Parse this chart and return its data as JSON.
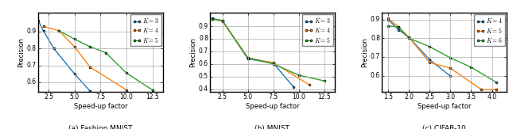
{
  "fashion_mnist": {
    "title": "(a) Fashion MNIST",
    "xlabel": "Speed-up factor",
    "ylabel": "Precision",
    "xlim": [
      1.5,
      13.5
    ],
    "ylim": [
      0.545,
      1.01
    ],
    "xticks": [
      2.5,
      5.0,
      7.5,
      10.0,
      12.5
    ],
    "yticks": [
      0.6,
      0.7,
      0.8,
      0.9
    ],
    "series": [
      {
        "label": "$K = 3$",
        "color": "#1f77b4",
        "x": [
          1.5,
          2.0,
          3.0,
          5.0,
          6.5
        ],
        "y": [
          0.965,
          0.905,
          0.8,
          0.65,
          0.548
        ]
      },
      {
        "label": "$K = 4$",
        "color": "#ff7f0e",
        "x": [
          2.0,
          3.5,
          5.0,
          6.5,
          10.0
        ],
        "y": [
          0.93,
          0.905,
          0.81,
          0.69,
          0.555
        ]
      },
      {
        "label": "$K = 5$",
        "color": "#2ca02c",
        "x": [
          3.5,
          5.0,
          6.5,
          8.0,
          10.0,
          12.5
        ],
        "y": [
          0.905,
          0.855,
          0.81,
          0.775,
          0.655,
          0.555
        ]
      }
    ]
  },
  "mnist": {
    "title": "(b) MNIST",
    "xlabel": "Speed-up factor",
    "ylabel": "Precision",
    "xlim": [
      1.3,
      13.5
    ],
    "ylim": [
      0.38,
      1.005
    ],
    "xticks": [
      2.5,
      5.0,
      7.5,
      10.0,
      12.5
    ],
    "yticks": [
      0.4,
      0.5,
      0.6,
      0.7,
      0.8,
      0.9
    ],
    "series": [
      {
        "label": "$K = 3$",
        "color": "#1f77b4",
        "x": [
          1.5,
          2.5,
          5.0,
          7.5,
          9.5
        ],
        "y": [
          0.96,
          0.945,
          0.64,
          0.605,
          0.415
        ]
      },
      {
        "label": "$K = 4$",
        "color": "#ff7f0e",
        "x": [
          1.5,
          2.5,
          5.0,
          7.5,
          11.0
        ],
        "y": [
          0.955,
          0.94,
          0.645,
          0.61,
          0.435
        ]
      },
      {
        "label": "$K = 5$",
        "color": "#2ca02c",
        "x": [
          1.5,
          2.5,
          5.0,
          7.5,
          10.0,
          12.5
        ],
        "y": [
          0.955,
          0.945,
          0.65,
          0.6,
          0.51,
          0.465
        ]
      }
    ]
  },
  "cifar10": {
    "title": "(c) CIFAR-10",
    "xlabel": "Speed-up factor",
    "ylabel": "Precision",
    "xlim": [
      1.35,
      4.35
    ],
    "ylim": [
      0.515,
      0.935
    ],
    "xticks": [
      1.5,
      2.0,
      2.5,
      3.0,
      3.5,
      4.0
    ],
    "yticks": [
      0.6,
      0.7,
      0.8,
      0.9
    ],
    "series": [
      {
        "label": "$K = 4$",
        "color": "#1f77b4",
        "x": [
          1.5,
          1.75,
          2.0,
          2.5,
          3.0
        ],
        "y": [
          0.9,
          0.845,
          0.805,
          0.685,
          0.598
        ]
      },
      {
        "label": "$K = 5$",
        "color": "#ff7f0e",
        "x": [
          1.5,
          1.75,
          2.0,
          2.5,
          3.0,
          3.75,
          4.1
        ],
        "y": [
          0.905,
          0.86,
          0.805,
          0.67,
          0.64,
          0.525,
          0.525
        ]
      },
      {
        "label": "$K = 6$",
        "color": "#2ca02c",
        "x": [
          1.5,
          1.75,
          2.0,
          2.5,
          3.0,
          3.5,
          4.1
        ],
        "y": [
          0.865,
          0.86,
          0.8,
          0.755,
          0.695,
          0.645,
          0.565
        ]
      }
    ]
  }
}
